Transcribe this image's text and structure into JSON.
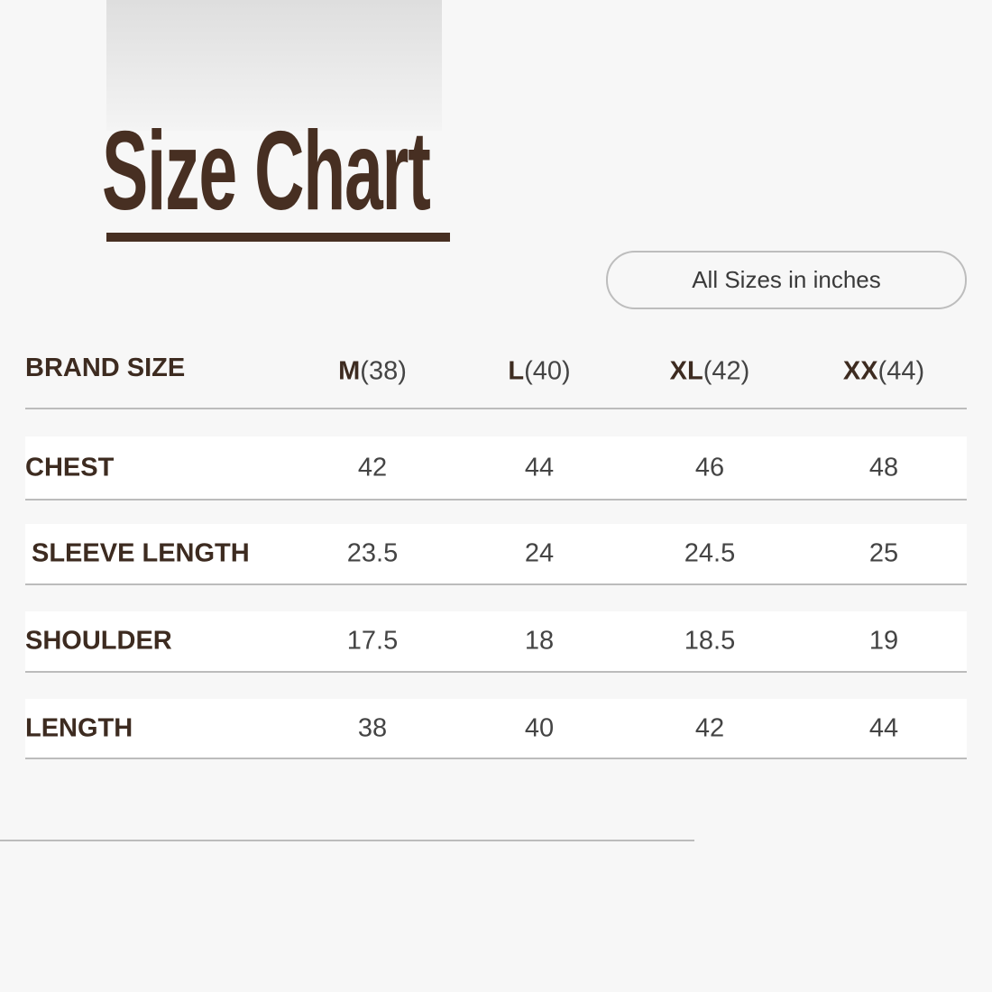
{
  "title": "Size Chart",
  "unit_note": "All Sizes in inches",
  "colors": {
    "brand_brown": "#472f22",
    "background": "#f7f7f7",
    "divider": "#bcbcbc"
  },
  "table": {
    "header_label": "BRAND SIZE",
    "sizes": [
      {
        "size": "M",
        "measure": "(38)"
      },
      {
        "size": "L",
        "measure": "(40)"
      },
      {
        "size": "XL",
        "measure": "(42)"
      },
      {
        "size": "XX",
        "measure": "(44)"
      }
    ],
    "rows": [
      {
        "label": "CHEST",
        "values": [
          "42",
          "44",
          "46",
          "48"
        ]
      },
      {
        "label": "SLEEVE LENGTH",
        "values": [
          "23.5",
          "24",
          "24.5",
          "25"
        ]
      },
      {
        "label": "SHOULDER",
        "values": [
          "17.5",
          "18",
          "18.5",
          "19"
        ]
      },
      {
        "label": "LENGTH",
        "values": [
          "38",
          "40",
          "42",
          "44"
        ]
      }
    ]
  }
}
